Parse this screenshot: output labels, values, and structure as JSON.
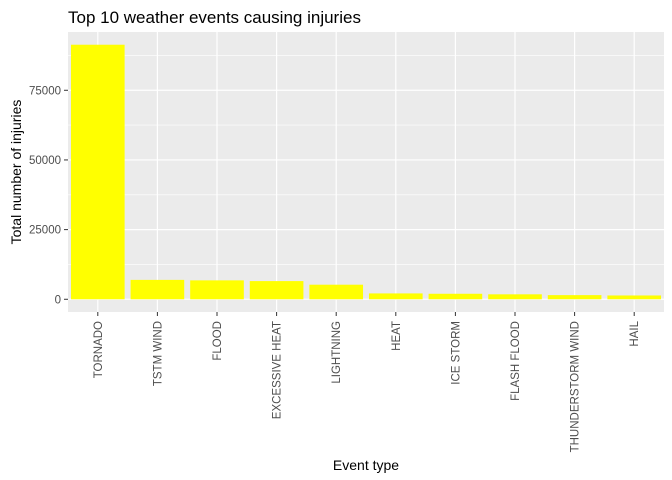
{
  "chart_data": {
    "type": "bar",
    "title": "Top 10 weather events causing injuries",
    "xlabel": "Event type",
    "ylabel": "Total number of injuries",
    "categories": [
      "TORNADO",
      "TSTM WIND",
      "FLOOD",
      "EXCESSIVE HEAT",
      "LIGHTNING",
      "HEAT",
      "ICE STORM",
      "FLASH FLOOD",
      "THUNDERSTORM WIND",
      "HAIL"
    ],
    "values": [
      91346,
      6957,
      6789,
      6525,
      5230,
      2100,
      1975,
      1777,
      1488,
      1361
    ],
    "ylim": [
      -4567,
      95913
    ],
    "yticks": [
      0,
      25000,
      50000,
      75000
    ],
    "ytick_labels": [
      "0",
      "25000",
      "50000",
      "75000"
    ],
    "bar_color": "#ffff00",
    "panel_color": "#ebebeb",
    "grid_color": "#ffffff",
    "grid": true
  }
}
